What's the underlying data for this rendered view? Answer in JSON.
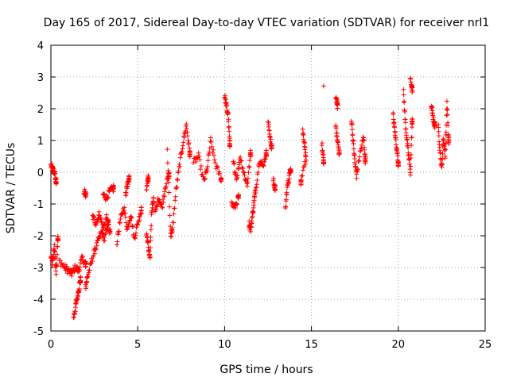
{
  "chart_data": {
    "type": "scatter",
    "title": "Day 165 of 2017, Sidereal Day-to-day VTEC variation (SDTVAR) for receiver nrl1",
    "xlabel": "GPS time / hours",
    "ylabel": "SDTVAR / TECUs",
    "xlim": [
      0,
      25
    ],
    "ylim": [
      -5,
      4
    ],
    "xticks": [
      "0",
      "5",
      "10",
      "15",
      "20",
      "25"
    ],
    "yticks": [
      "-5",
      "-4",
      "-3",
      "-2",
      "-1",
      "0",
      "1",
      "2",
      "3",
      "4"
    ],
    "grid": true,
    "marker": "+",
    "color": "#ff0000",
    "series": [
      {
        "name": "nrl1",
        "segments": [
          [
            [
              0.0,
              0.2
            ],
            [
              0.1,
              0.1
            ],
            [
              0.2,
              0.0
            ],
            [
              0.3,
              -0.3
            ]
          ],
          [
            [
              0.0,
              -2.6
            ],
            [
              0.1,
              -2.9
            ],
            [
              0.2,
              -2.3
            ],
            [
              0.3,
              -3.2
            ],
            [
              0.4,
              -2.1
            ]
          ],
          [
            [
              0.5,
              -2.8
            ],
            [
              0.8,
              -3.0
            ],
            [
              1.0,
              -3.1
            ],
            [
              1.2,
              -3.2
            ],
            [
              1.4,
              -3.0
            ],
            [
              1.6,
              -3.1
            ],
            [
              1.8,
              -2.7
            ],
            [
              2.0,
              -2.9
            ]
          ],
          [
            [
              1.3,
              -4.6
            ],
            [
              1.4,
              -4.3
            ],
            [
              1.5,
              -4.0
            ],
            [
              1.6,
              -3.7
            ],
            [
              1.7,
              -3.4
            ]
          ],
          [
            [
              1.9,
              -0.6
            ],
            [
              2.0,
              -0.7
            ]
          ],
          [
            [
              2.0,
              -3.6
            ],
            [
              2.1,
              -3.3
            ],
            [
              2.3,
              -2.9
            ],
            [
              2.5,
              -2.5
            ],
            [
              2.7,
              -2.2
            ],
            [
              2.9,
              -1.9
            ],
            [
              3.1,
              -2.1
            ],
            [
              3.3,
              -1.6
            ]
          ],
          [
            [
              2.4,
              -1.4
            ],
            [
              2.6,
              -1.6
            ],
            [
              2.8,
              -1.3
            ],
            [
              3.0,
              -1.8
            ],
            [
              3.2,
              -1.4
            ],
            [
              3.4,
              -1.9
            ]
          ],
          [
            [
              3.0,
              -0.7
            ],
            [
              3.2,
              -0.8
            ],
            [
              3.4,
              -0.6
            ],
            [
              3.6,
              -0.5
            ]
          ],
          [
            [
              3.8,
              -2.2
            ],
            [
              4.0,
              -1.5
            ],
            [
              4.2,
              -1.1
            ],
            [
              4.4,
              -1.8
            ],
            [
              4.6,
              -1.3
            ],
            [
              4.8,
              -2.1
            ],
            [
              5.0,
              -1.6
            ],
            [
              5.2,
              -1.2
            ]
          ],
          [
            [
              4.3,
              -0.7
            ],
            [
              4.4,
              -0.4
            ],
            [
              4.5,
              -0.2
            ]
          ],
          [
            [
              5.5,
              -1.9
            ],
            [
              5.6,
              -2.3
            ],
            [
              5.7,
              -2.8
            ],
            [
              5.8,
              -1.2
            ],
            [
              5.9,
              -0.9
            ]
          ],
          [
            [
              5.5,
              -0.6
            ],
            [
              5.6,
              -0.2
            ]
          ],
          [
            [
              6.0,
              -1.3
            ],
            [
              6.2,
              -0.8
            ],
            [
              6.4,
              -1.1
            ],
            [
              6.6,
              -0.4
            ],
            [
              6.8,
              -0.1
            ]
          ],
          [
            [
              6.7,
              0.7
            ],
            [
              6.9,
              -2.0
            ],
            [
              7.0,
              -1.8
            ],
            [
              7.2,
              -0.6
            ],
            [
              7.4,
              0.2
            ],
            [
              7.6,
              0.9
            ],
            [
              7.8,
              1.5
            ],
            [
              8.0,
              0.6
            ]
          ],
          [
            [
              8.2,
              0.3
            ],
            [
              8.5,
              0.5
            ],
            [
              8.8,
              -0.3
            ],
            [
              9.0,
              0.1
            ],
            [
              9.2,
              1.0
            ],
            [
              9.5,
              0.2
            ],
            [
              9.8,
              -0.2
            ]
          ],
          [
            [
              10.0,
              2.4
            ],
            [
              10.1,
              2.1
            ],
            [
              10.2,
              1.8
            ],
            [
              10.3,
              0.9
            ]
          ],
          [
            [
              10.4,
              -1.0
            ],
            [
              10.6,
              -1.1
            ],
            [
              10.8,
              -0.8
            ]
          ],
          [
            [
              10.5,
              0.3
            ],
            [
              10.7,
              -0.2
            ],
            [
              10.9,
              0.5
            ],
            [
              11.1,
              0.0
            ],
            [
              11.3,
              -0.4
            ],
            [
              11.5,
              0.6
            ]
          ],
          [
            [
              11.4,
              -1.6
            ],
            [
              11.5,
              -1.8
            ],
            [
              11.6,
              -1.4
            ],
            [
              11.7,
              -0.9
            ],
            [
              11.8,
              -0.5
            ],
            [
              12.0,
              0.4
            ],
            [
              12.2,
              0.2
            ],
            [
              12.4,
              0.6
            ]
          ],
          [
            [
              12.5,
              1.6
            ],
            [
              12.6,
              1.2
            ],
            [
              12.7,
              0.8
            ]
          ],
          [
            [
              12.8,
              -0.2
            ],
            [
              12.9,
              -0.5
            ]
          ],
          [
            [
              13.5,
              -1.2
            ],
            [
              13.6,
              -0.5
            ],
            [
              13.7,
              -0.2
            ],
            [
              13.8,
              0.1
            ]
          ],
          [
            [
              14.5,
              1.3
            ],
            [
              14.6,
              0.9
            ],
            [
              14.7,
              0.4
            ],
            [
              14.4,
              -0.3
            ]
          ],
          [
            [
              15.7,
              2.7
            ]
          ],
          [
            [
              15.6,
              0.9
            ],
            [
              15.7,
              0.3
            ]
          ],
          [
            [
              16.4,
              2.4
            ],
            [
              16.5,
              2.1
            ]
          ],
          [
            [
              16.4,
              1.5
            ],
            [
              16.5,
              1.0
            ],
            [
              16.6,
              0.6
            ]
          ],
          [
            [
              17.3,
              1.7
            ],
            [
              17.4,
              1.0
            ],
            [
              17.5,
              0.3
            ],
            [
              17.6,
              -0.1
            ],
            [
              17.8,
              0.6
            ],
            [
              18.0,
              1.1
            ],
            [
              18.1,
              0.4
            ]
          ],
          [
            [
              19.7,
              1.8
            ],
            [
              19.8,
              1.3
            ],
            [
              19.9,
              0.8
            ],
            [
              20.0,
              0.3
            ]
          ],
          [
            [
              20.3,
              2.5
            ],
            [
              20.4,
              1.6
            ],
            [
              20.5,
              1.0
            ],
            [
              20.6,
              0.5
            ],
            [
              20.7,
              0.0
            ],
            [
              20.8,
              1.6
            ]
          ],
          [
            [
              20.7,
              2.9
            ],
            [
              20.8,
              2.6
            ]
          ],
          [
            [
              21.9,
              2.1
            ],
            [
              22.0,
              1.7
            ],
            [
              22.1,
              1.5
            ]
          ],
          [
            [
              22.3,
              1.4
            ],
            [
              22.4,
              0.7
            ],
            [
              22.5,
              0.1
            ],
            [
              22.6,
              1.1
            ],
            [
              22.7,
              0.5
            ],
            [
              22.8,
              2.2
            ],
            [
              22.9,
              1.0
            ]
          ]
        ]
      }
    ]
  }
}
